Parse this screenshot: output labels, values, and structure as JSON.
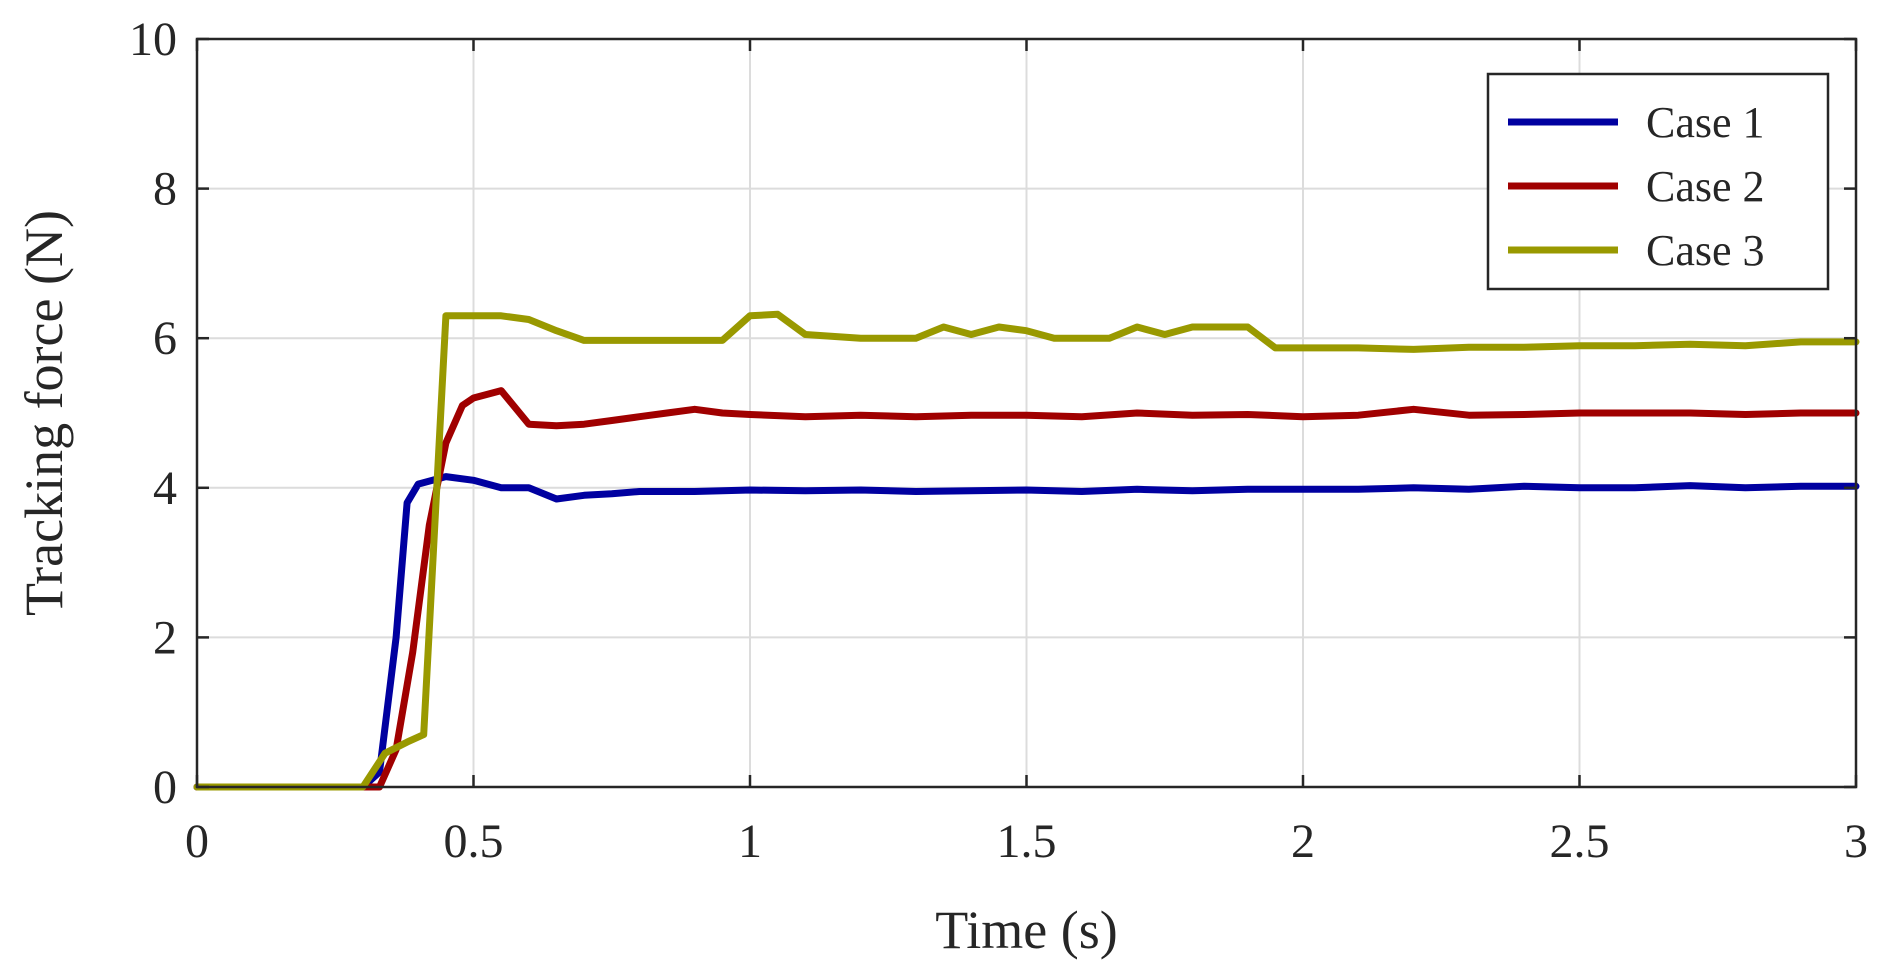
{
  "chart_data": {
    "type": "line",
    "title": "",
    "xlabel": "Time (s)",
    "ylabel": "Tracking force (N)",
    "xlim": [
      0,
      3
    ],
    "ylim": [
      0,
      10
    ],
    "xticks": [
      0,
      0.5,
      1,
      1.5,
      2,
      2.5,
      3
    ],
    "xtick_labels": [
      "0",
      "0.5",
      "1",
      "1.5",
      "2",
      "2.5",
      "3"
    ],
    "yticks": [
      0,
      2,
      4,
      6,
      8,
      10
    ],
    "ytick_labels": [
      "0",
      "2",
      "4",
      "6",
      "8",
      "10"
    ],
    "grid": true,
    "legend_position": "top-right",
    "series": [
      {
        "name": "Case 1",
        "color": "#0000a0",
        "x": [
          0,
          0.3,
          0.33,
          0.36,
          0.38,
          0.4,
          0.45,
          0.5,
          0.55,
          0.6,
          0.65,
          0.7,
          0.75,
          0.8,
          0.9,
          1.0,
          1.1,
          1.2,
          1.3,
          1.4,
          1.5,
          1.6,
          1.7,
          1.8,
          1.9,
          2.0,
          2.1,
          2.2,
          2.3,
          2.4,
          2.5,
          2.6,
          2.7,
          2.8,
          2.9,
          3.0
        ],
        "y": [
          0,
          0,
          0.2,
          2.0,
          3.8,
          4.05,
          4.15,
          4.1,
          4.0,
          4.0,
          3.85,
          3.9,
          3.92,
          3.95,
          3.95,
          3.97,
          3.96,
          3.97,
          3.95,
          3.96,
          3.97,
          3.95,
          3.98,
          3.96,
          3.98,
          3.98,
          3.98,
          4.0,
          3.98,
          4.02,
          4.0,
          4.0,
          4.03,
          4.0,
          4.02,
          4.02
        ]
      },
      {
        "name": "Case 2",
        "color": "#a00000",
        "x": [
          0,
          0.33,
          0.36,
          0.39,
          0.42,
          0.45,
          0.48,
          0.5,
          0.55,
          0.6,
          0.65,
          0.7,
          0.75,
          0.8,
          0.85,
          0.9,
          0.95,
          1.0,
          1.1,
          1.2,
          1.3,
          1.4,
          1.5,
          1.6,
          1.7,
          1.8,
          1.9,
          2.0,
          2.1,
          2.2,
          2.3,
          2.4,
          2.5,
          2.6,
          2.7,
          2.8,
          2.9,
          3.0
        ],
        "y": [
          0,
          0,
          0.5,
          1.8,
          3.5,
          4.6,
          5.1,
          5.2,
          5.3,
          4.85,
          4.83,
          4.85,
          4.9,
          4.95,
          5.0,
          5.05,
          5.0,
          4.98,
          4.95,
          4.97,
          4.95,
          4.97,
          4.97,
          4.95,
          5.0,
          4.97,
          4.98,
          4.95,
          4.97,
          5.05,
          4.97,
          4.98,
          5.0,
          5.0,
          5.0,
          4.98,
          5.0,
          5.0
        ]
      },
      {
        "name": "Case 3",
        "color": "#999900",
        "x": [
          0,
          0.3,
          0.34,
          0.38,
          0.41,
          0.43,
          0.45,
          0.5,
          0.55,
          0.6,
          0.65,
          0.7,
          0.8,
          0.9,
          0.95,
          1.0,
          1.05,
          1.1,
          1.2,
          1.3,
          1.35,
          1.4,
          1.45,
          1.5,
          1.55,
          1.6,
          1.65,
          1.7,
          1.75,
          1.8,
          1.9,
          1.95,
          2.0,
          2.1,
          2.2,
          2.3,
          2.4,
          2.5,
          2.6,
          2.7,
          2.8,
          2.9,
          3.0
        ],
        "y": [
          0,
          0,
          0.45,
          0.6,
          0.7,
          3.5,
          6.3,
          6.3,
          6.3,
          6.25,
          6.1,
          5.97,
          5.97,
          5.97,
          5.97,
          6.3,
          6.32,
          6.05,
          6.0,
          6.0,
          6.15,
          6.05,
          6.15,
          6.1,
          6.0,
          6.0,
          6.0,
          6.15,
          6.05,
          6.15,
          6.15,
          5.87,
          5.87,
          5.87,
          5.85,
          5.88,
          5.88,
          5.9,
          5.9,
          5.92,
          5.9,
          5.95,
          5.95
        ]
      }
    ]
  }
}
